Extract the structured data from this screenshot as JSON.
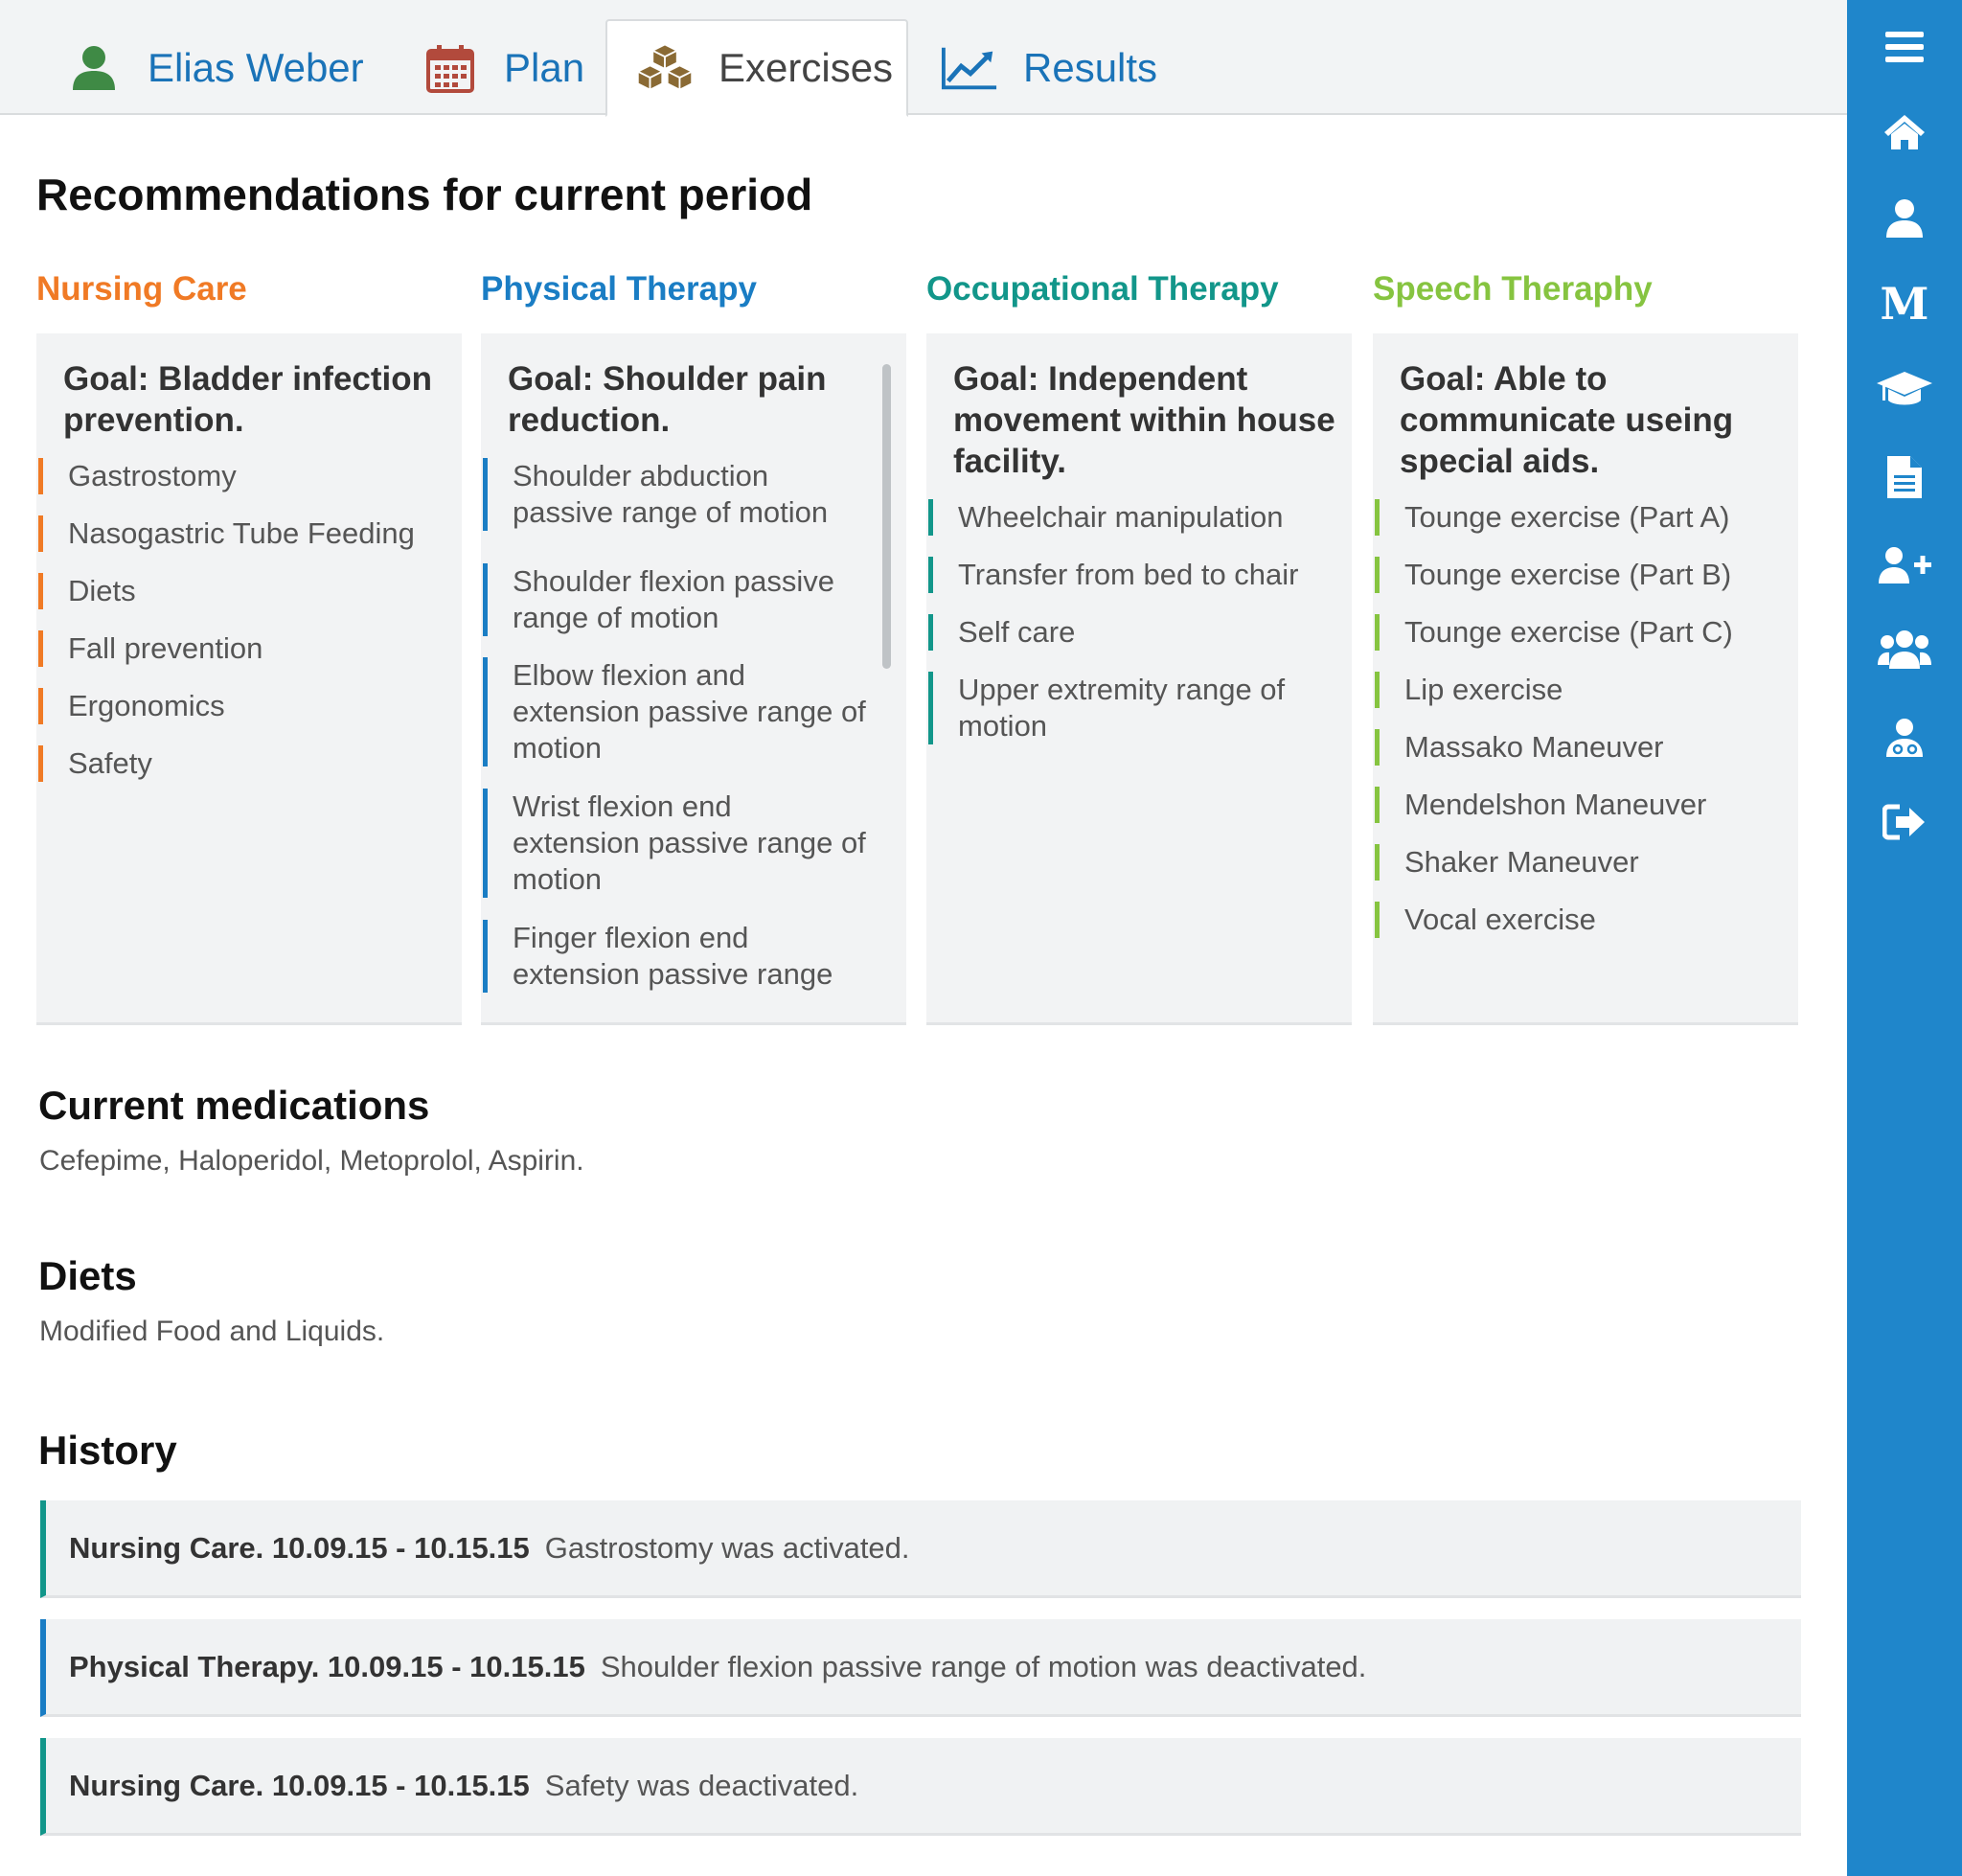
{
  "tabs": {
    "patient": "Elias Weber",
    "plan": "Plan",
    "exercises": "Exercises",
    "results": "Results"
  },
  "page_title": "Recommendations for current period",
  "columns": [
    {
      "header": "Nursing Care",
      "color": "#f07a25",
      "goal": "Goal: Bladder infection prevention.",
      "items": [
        "Gastrostomy",
        "Nasogastric Tube Feeding",
        "Diets",
        "Fall prevention",
        "Ergonomics",
        "Safety"
      ]
    },
    {
      "header": "Physical Therapy",
      "color": "#1a7dc4",
      "goal": "Goal: Shoulder pain reduction.",
      "items": [
        "Shoulder abduction passive range of motion",
        "Shoulder flexion passive range of motion",
        "Elbow flexion and extension passive range of motion",
        "Wrist flexion end extension passive range of motion",
        "Finger flexion end extension passive range"
      ]
    },
    {
      "header": "Occupational Therapy",
      "color": "#12968a",
      "goal": "Goal: Independent movement within house facility.",
      "items": [
        "Wheelchair manipulation",
        "Transfer from bed to chair",
        "Self care",
        "Upper extremity range of motion"
      ]
    },
    {
      "header": "Speech Theraphy",
      "color": "#86c440",
      "goal": "Goal: Able to communicate useing special aids.",
      "items": [
        "Tounge exercise (Part A)",
        "Tounge exercise (Part B)",
        "Tounge exercise (Part C)",
        "Lip exercise",
        "Massako Maneuver",
        "Mendelshon Maneuver",
        "Shaker Maneuver",
        "Vocal exercise"
      ]
    }
  ],
  "medications": {
    "title": "Current medications",
    "text": "Cefepime, Haloperidol, Metoprolol, Aspirin."
  },
  "diets": {
    "title": "Diets",
    "text": "Modified Food and Liquids."
  },
  "history": {
    "title": "History",
    "rows": [
      {
        "label": "Nursing Care. 10.09.15 - 10.15.15",
        "text": "Gastrostomy was activated.",
        "color": "#12968a"
      },
      {
        "label": "Physical Therapy. 10.09.15 - 10.15.15",
        "text": "Shoulder flexion passive range of motion was deactivated.",
        "color": "#1a7dc4"
      },
      {
        "label": "Nursing Care. 10.09.15 - 10.15.15",
        "text": "Safety was deactivated.",
        "color": "#12968a"
      }
    ]
  },
  "sidebar_icons": [
    "menu-icon",
    "home-icon",
    "user-icon",
    "m-icon",
    "graduation-cap-icon",
    "document-icon",
    "add-user-icon",
    "group-icon",
    "doctor-icon",
    "sign-out-icon"
  ],
  "colors": {
    "sidebar": "#1f86cb",
    "tab_link": "#1a73b8"
  }
}
